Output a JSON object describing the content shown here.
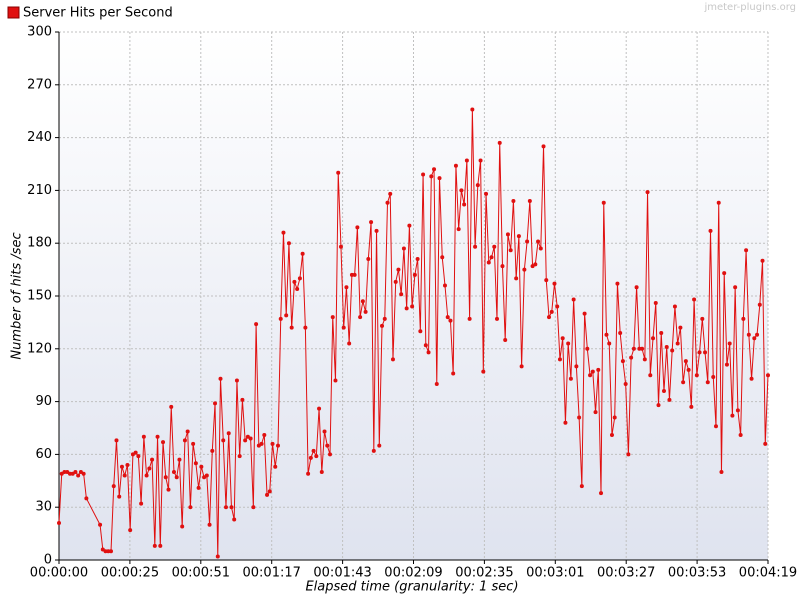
{
  "chart_data": {
    "type": "line",
    "watermark": "jmeter-plugins.org",
    "x_label": "Elapsed time (granularity: 1 sec)",
    "y_label": "Number of hits /sec",
    "grid": true,
    "legend": "top-left",
    "xlim": [
      0,
      259
    ],
    "ylim": [
      0,
      300
    ],
    "yticks": [
      0,
      30,
      60,
      90,
      120,
      150,
      180,
      210,
      240,
      270,
      300
    ],
    "xticks": [
      {
        "value": 0,
        "label": "00:00:00"
      },
      {
        "value": 25.9,
        "label": "00:00:25"
      },
      {
        "value": 51.8,
        "label": "00:00:51"
      },
      {
        "value": 77.7,
        "label": "00:01:17"
      },
      {
        "value": 103.6,
        "label": "00:01:43"
      },
      {
        "value": 129.5,
        "label": "00:02:09"
      },
      {
        "value": 155.4,
        "label": "00:02:35"
      },
      {
        "value": 181.3,
        "label": "00:03:01"
      },
      {
        "value": 207.2,
        "label": "00:03:27"
      },
      {
        "value": 233.1,
        "label": "00:03:53"
      },
      {
        "value": 259,
        "label": "00:04:19"
      }
    ],
    "x": [
      0,
      1,
      2,
      3,
      4,
      5,
      6,
      7,
      8,
      9,
      10,
      15,
      16,
      17,
      18,
      19,
      20,
      21,
      22,
      23,
      24,
      25,
      26,
      27,
      28,
      29,
      30,
      31,
      32,
      33,
      34,
      35,
      36,
      37,
      38,
      39,
      40,
      41,
      42,
      43,
      44,
      45,
      46,
      47,
      48,
      49,
      50,
      51,
      52,
      53,
      54,
      55,
      56,
      57,
      58,
      59,
      60,
      61,
      62,
      63,
      64,
      65,
      66,
      67,
      68,
      69,
      70,
      71,
      72,
      73,
      74,
      75,
      76,
      77,
      78,
      79,
      80,
      81,
      82,
      83,
      84,
      85,
      86,
      87,
      88,
      89,
      90,
      91,
      92,
      93,
      94,
      95,
      96,
      97,
      98,
      99,
      100,
      101,
      102,
      103,
      104,
      105,
      106,
      107,
      108,
      109,
      110,
      111,
      112,
      113,
      114,
      115,
      116,
      117,
      118,
      119,
      120,
      121,
      122,
      123,
      124,
      125,
      126,
      127,
      128,
      129,
      130,
      131,
      132,
      133,
      134,
      135,
      136,
      137,
      138,
      139,
      140,
      141,
      142,
      143,
      144,
      145,
      146,
      147,
      148,
      149,
      150,
      151,
      152,
      153,
      154,
      155,
      156,
      157,
      158,
      159,
      160,
      161,
      162,
      163,
      164,
      165,
      166,
      167,
      168,
      169,
      170,
      171,
      172,
      173,
      174,
      175,
      176,
      177,
      178,
      179,
      180,
      181,
      182,
      183,
      184,
      185,
      186,
      187,
      188,
      189,
      190,
      191,
      192,
      193,
      194,
      195,
      196,
      197,
      198,
      199,
      200,
      201,
      202,
      203,
      204,
      205,
      206,
      207,
      208,
      209,
      210,
      211,
      212,
      213,
      214,
      215,
      216,
      217,
      218,
      219,
      220,
      221,
      222,
      223,
      224,
      225,
      226,
      227,
      228,
      229,
      230,
      231,
      232,
      233,
      234,
      235,
      236,
      237,
      238,
      239,
      240,
      241,
      242,
      243,
      244,
      245,
      246,
      247,
      248,
      249,
      250,
      251,
      252,
      253,
      254,
      255,
      256,
      257,
      258,
      259
    ],
    "series": [
      {
        "name": "Server Hits per Second",
        "color": "#e01010",
        "values": [
          21,
          49,
          50,
          50,
          49,
          49,
          50,
          48,
          50,
          49,
          35,
          20,
          6,
          5,
          5,
          5,
          42,
          68,
          36,
          53,
          48,
          54,
          17,
          60,
          61,
          59,
          32,
          70,
          48,
          52,
          57,
          8,
          70,
          8,
          67,
          47,
          40,
          87,
          50,
          47,
          57,
          19,
          68,
          73,
          30,
          66,
          55,
          41,
          53,
          47,
          48,
          20,
          62,
          89,
          2,
          103,
          68,
          30,
          72,
          30,
          23,
          102,
          59,
          91,
          68,
          70,
          69,
          30,
          134,
          65,
          66,
          71,
          37,
          39,
          66,
          53,
          65,
          137,
          186,
          139,
          180,
          132,
          158,
          154,
          160,
          174,
          132,
          49,
          58,
          62,
          59,
          86,
          50,
          73,
          65,
          60,
          138,
          102,
          220,
          178,
          132,
          155,
          123,
          162,
          162,
          189,
          138,
          147,
          141,
          171,
          192,
          62,
          187,
          65,
          133,
          137,
          203,
          208,
          114,
          158,
          165,
          151,
          177,
          143,
          190,
          144,
          162,
          171,
          130,
          219,
          122,
          118,
          218,
          222,
          100,
          217,
          172,
          156,
          138,
          136,
          106,
          224,
          188,
          210,
          202,
          227,
          137,
          256,
          178,
          213,
          227,
          107,
          208,
          169,
          172,
          178,
          137,
          237,
          167,
          125,
          185,
          176,
          204,
          160,
          184,
          110,
          165,
          181,
          204,
          167,
          168,
          181,
          177,
          235,
          159,
          138,
          141,
          157,
          144,
          114,
          126,
          78,
          123,
          103,
          148,
          110,
          81,
          42,
          140,
          120,
          105,
          107,
          84,
          108,
          38,
          203,
          128,
          123,
          71,
          81,
          157,
          129,
          113,
          100,
          60,
          115,
          120,
          155,
          120,
          120,
          114,
          209,
          105,
          126,
          146,
          88,
          129,
          96,
          121,
          91,
          119,
          144,
          123,
          132,
          101,
          113,
          108,
          87,
          148,
          105,
          118,
          137,
          118,
          101,
          187,
          104,
          76,
          203,
          50,
          163,
          111,
          123,
          82,
          155,
          85,
          71,
          137,
          176,
          128,
          103,
          126,
          128,
          145,
          170,
          66,
          105
        ]
      }
    ]
  }
}
